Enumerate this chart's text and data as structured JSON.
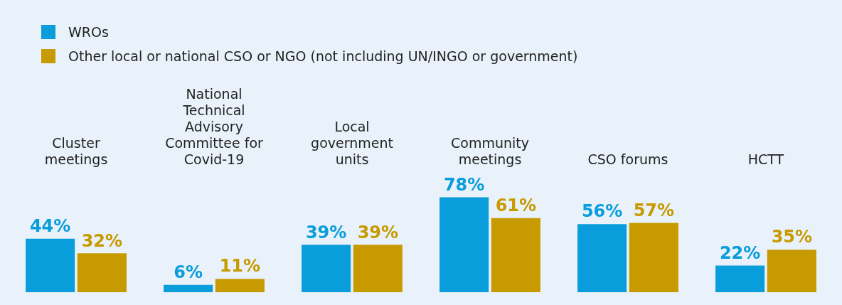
{
  "chart_data": {
    "type": "bar",
    "categories": [
      "Cluster meetings",
      "National Technical Advisory Committee for Covid-19",
      "Local government units",
      "Community meetings",
      "CSO forums",
      "HCTT"
    ],
    "series": [
      {
        "name": "WROs",
        "color": "#0a9ddb",
        "values": [
          44,
          6,
          39,
          78,
          56,
          22
        ],
        "value_labels": [
          "44%",
          "6%",
          "39%",
          "78%",
          "56%",
          "22%"
        ]
      },
      {
        "name": "Other local or national CSO or NGO (not including UN/INGO or government)",
        "color": "#c79a00",
        "values": [
          32,
          11,
          39,
          61,
          57,
          35
        ],
        "value_labels": [
          "32%",
          "11%",
          "39%",
          "61%",
          "57%",
          "35%"
        ]
      }
    ],
    "legend": "top left",
    "grid": false
  }
}
